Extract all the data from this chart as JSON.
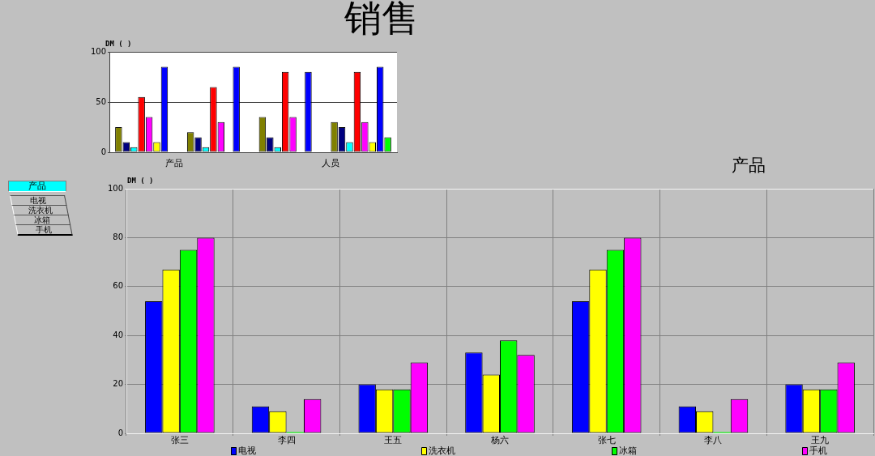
{
  "chart_data": [
    {
      "type": "bar",
      "title": "销售",
      "ylabel": "DM ( )",
      "xlabel": "产品",
      "annotations": [
        "人员"
      ],
      "categories": [
        null,
        null,
        null,
        null
      ],
      "series": [
        {
          "color": "#808000",
          "values": [
            25,
            20,
            35,
            30
          ]
        },
        {
          "color": "#000080",
          "values": [
            10,
            15,
            15,
            25
          ]
        },
        {
          "color": "#00ffff",
          "values": [
            5,
            5,
            5,
            10
          ]
        },
        {
          "color": "#ff0000",
          "values": [
            55,
            65,
            80,
            80
          ]
        },
        {
          "color": "#ff00ff",
          "values": [
            35,
            30,
            35,
            30
          ]
        },
        {
          "color": "#ffff00",
          "values": [
            10,
            null,
            null,
            10
          ]
        },
        {
          "color": "#0000ff",
          "values": [
            85,
            85,
            80,
            85
          ]
        },
        {
          "color": "#00ff00",
          "values": [
            null,
            null,
            null,
            15
          ]
        }
      ],
      "ylim": [
        0,
        100
      ],
      "yticks": [
        0,
        50,
        100
      ],
      "grid": "y",
      "tick_labels": "y"
    },
    {
      "type": "bar",
      "title": "产品",
      "ylabel": "DM ( )",
      "legend_title": "产品",
      "categories": [
        "张三",
        "李四",
        "王五",
        "杨六",
        "张七",
        "李八",
        "王九"
      ],
      "series": [
        {
          "name": "电视",
          "color": "#0000ff",
          "values": [
            54,
            11,
            20,
            33,
            54,
            11,
            20
          ]
        },
        {
          "name": "洗衣机",
          "color": "#ffff00",
          "values": [
            67,
            9,
            18,
            24,
            67,
            9,
            18
          ]
        },
        {
          "name": "冰箱",
          "color": "#00ff00",
          "values": [
            75,
            0.5,
            18,
            38,
            75,
            0.5,
            18
          ]
        },
        {
          "name": "手机",
          "color": "#ff00ff",
          "values": [
            80,
            14,
            29,
            32,
            80,
            14,
            29
          ]
        }
      ],
      "ylim": [
        0,
        100
      ],
      "yticks": [
        0,
        20,
        40,
        60,
        80,
        100
      ],
      "grid": true,
      "legend": "bottom"
    }
  ]
}
